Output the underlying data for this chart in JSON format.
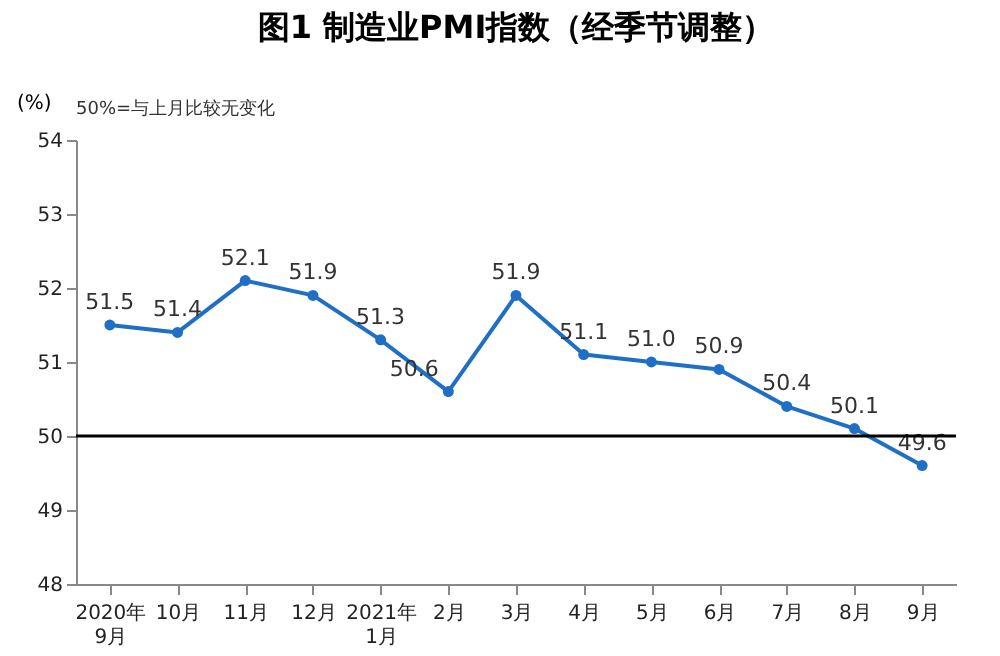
{
  "chart_data": {
    "type": "line",
    "title": "图1 制造业PMI指数（经季节调整）",
    "ylabel": "(%)",
    "annotations": [
      "50%=与上月比较无变化"
    ],
    "categories": [
      "2020年\n9月",
      "10月",
      "11月",
      "12月",
      "2021年\n1月",
      "2月",
      "3月",
      "4月",
      "5月",
      "6月",
      "7月",
      "8月",
      "9月"
    ],
    "series": [
      {
        "color": "#1f6fc5",
        "values": [
          51.5,
          51.4,
          52.1,
          51.9,
          51.3,
          50.6,
          51.9,
          51.1,
          51.0,
          50.9,
          50.4,
          50.1,
          49.6
        ]
      }
    ],
    "value_labels": [
      "51.5",
      "51.4",
      "52.1",
      "51.9",
      "51.3",
      "50.6",
      "51.9",
      "51.1",
      "51.0",
      "50.9",
      "50.4",
      "50.1",
      "49.6"
    ],
    "ylim": [
      48,
      54
    ],
    "yticks": [
      48,
      49,
      50,
      51,
      52,
      53,
      54
    ],
    "marker": "circle",
    "grid": false,
    "ref_lines": [
      {
        "axis": "y",
        "value": 50,
        "color": "#000000"
      }
    ]
  }
}
